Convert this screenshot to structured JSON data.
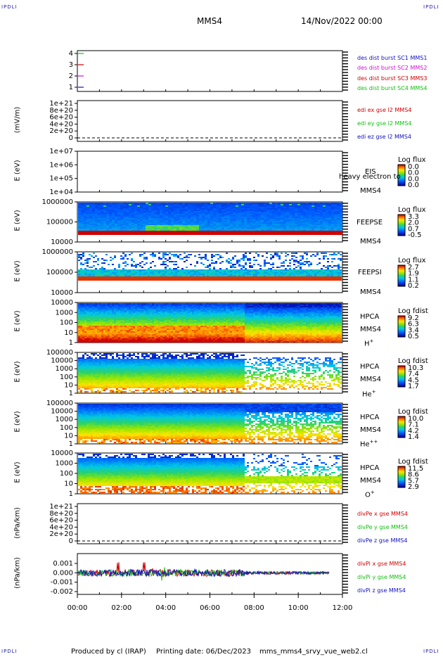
{
  "corners": {
    "tl": "IPDLI",
    "tr": "IPDLI",
    "bl": "IPDLI",
    "br": "IPDLI"
  },
  "header": {
    "spacecraft": "MMS4",
    "date": "14/Nov/2022 00:00"
  },
  "footer": {
    "producer": "Produced by cl (IRAP)",
    "printing": "Printing date: 06/Dec/2023",
    "file": "mms_mms4_srvy_vue_web2.cl"
  },
  "chart_data": [
    {
      "type": "line",
      "panel": "burst",
      "ylabel": "",
      "yticks": [
        "4",
        "3",
        "2",
        "1"
      ],
      "series": [
        {
          "name": "des dist burst SC1 MMS1",
          "color": "#1010c0",
          "y": 1
        },
        {
          "name": "des dist burst SC2 MMS2",
          "color": "#d010d0",
          "y": 2
        },
        {
          "name": "des dist burst SC3 MMS3",
          "color": "#d00000",
          "y": 3
        },
        {
          "name": "des dist burst SC4 MMS4",
          "color": "#10c010",
          "y": 4
        }
      ]
    },
    {
      "type": "line",
      "panel": "edi",
      "ylabel": "(mV/m)",
      "yticks": [
        "1e+21",
        "8e+20",
        "6e+20",
        "4e+20",
        "2e+20",
        "0"
      ],
      "series": [
        {
          "name": "edi ex gse l2 MMS4",
          "color": "#d00000"
        },
        {
          "name": "edi ey gse l2 MMS4",
          "color": "#10c010"
        },
        {
          "name": "edi ez gse l2 MMS4",
          "color": "#1010c0"
        }
      ]
    },
    {
      "type": "heatmap",
      "panel": "eis",
      "ylabel": "E (eV)",
      "yticks": [
        "1e+07",
        "1e+06",
        "1e+05",
        "1e+04"
      ],
      "instrument": "EIS",
      "spacecraft": "MMS4",
      "overlay": "heavy electron to",
      "cbar_label": "Log flux",
      "cbar_values": [
        "0.0",
        "0.0",
        "0.0",
        "0.0"
      ]
    },
    {
      "type": "heatmap",
      "panel": "feepse",
      "ylabel": "E (eV)",
      "yticks": [
        "1000000",
        "100000",
        "10000"
      ],
      "instrument": "FEEPSE",
      "spacecraft": "MMS4",
      "cbar_label": "Log flux",
      "cbar_values": [
        "3.3",
        "2.0",
        "0.7",
        "-0.5"
      ]
    },
    {
      "type": "heatmap",
      "panel": "feepsi",
      "ylabel": "E (eV)",
      "yticks": [
        "1000000",
        "100000",
        "10000"
      ],
      "instrument": "FEEPSI",
      "spacecraft": "MMS4",
      "cbar_label": "Log flux",
      "cbar_values": [
        "2.7",
        "1.9",
        "1.1",
        "0.2"
      ]
    },
    {
      "type": "heatmap",
      "panel": "hpca_h",
      "ylabel": "E (eV)",
      "yticks": [
        "10000",
        "1000",
        "100",
        "10",
        "1"
      ],
      "instrument": "HPCA",
      "spacecraft": "MMS4",
      "species": "H",
      "charge": "+",
      "cbar_label": "Log fdist",
      "cbar_values": [
        "9.2",
        "6.3",
        "3.4",
        "0.5"
      ]
    },
    {
      "type": "heatmap",
      "panel": "hpca_he",
      "ylabel": "E (eV)",
      "yticks": [
        "100000",
        "10000",
        "1000",
        "100",
        "10",
        "1"
      ],
      "instrument": "HPCA",
      "spacecraft": "MMS4",
      "species": "He",
      "charge": "+",
      "cbar_label": "Log fdist",
      "cbar_values": [
        "10.3",
        "7.4",
        "4.5",
        "1.7"
      ]
    },
    {
      "type": "heatmap",
      "panel": "hpca_hepp",
      "ylabel": "E (eV)",
      "yticks": [
        "100000",
        "10000",
        "1000",
        "100",
        "10",
        "1"
      ],
      "instrument": "HPCA",
      "spacecraft": "MMS4",
      "species": "He",
      "charge": "++",
      "cbar_label": "Log fdist",
      "cbar_values": [
        "10.0",
        "7.1",
        "4.2",
        "1.4"
      ]
    },
    {
      "type": "heatmap",
      "panel": "hpca_o",
      "ylabel": "E (eV)",
      "yticks": [
        "10000",
        "1000",
        "100",
        "10",
        "1"
      ],
      "instrument": "HPCA",
      "spacecraft": "MMS4",
      "species": "O",
      "charge": "+",
      "cbar_label": "Log fdist",
      "cbar_values": [
        "11.5",
        "8.6",
        "5.7",
        "2.9"
      ]
    },
    {
      "type": "line",
      "panel": "divpe",
      "ylabel": "(nPa/km)",
      "yticks": [
        "1e+21",
        "8e+20",
        "6e+20",
        "4e+20",
        "2e+20",
        "0"
      ],
      "series": [
        {
          "name": "divPe x gse MMS4",
          "color": "#d00000"
        },
        {
          "name": "divPe y gse MMS4",
          "color": "#10c010"
        },
        {
          "name": "divPe z gse MMS4",
          "color": "#1010c0"
        }
      ]
    },
    {
      "type": "line",
      "panel": "divpi",
      "ylabel": "(nPa/km)",
      "yticks": [
        "0.001",
        "0.000",
        "-0.001",
        "-0.002"
      ],
      "series": [
        {
          "name": "divPi x gse MMS4",
          "color": "#d00000"
        },
        {
          "name": "divPi y gse MMS4",
          "color": "#10c010"
        },
        {
          "name": "divPi z gse MMS4",
          "color": "#1010c0"
        }
      ]
    }
  ],
  "xaxis": {
    "ticks": [
      "00:00",
      "02:00",
      "04:00",
      "06:00",
      "08:00",
      "10:00",
      "12:00"
    ]
  }
}
